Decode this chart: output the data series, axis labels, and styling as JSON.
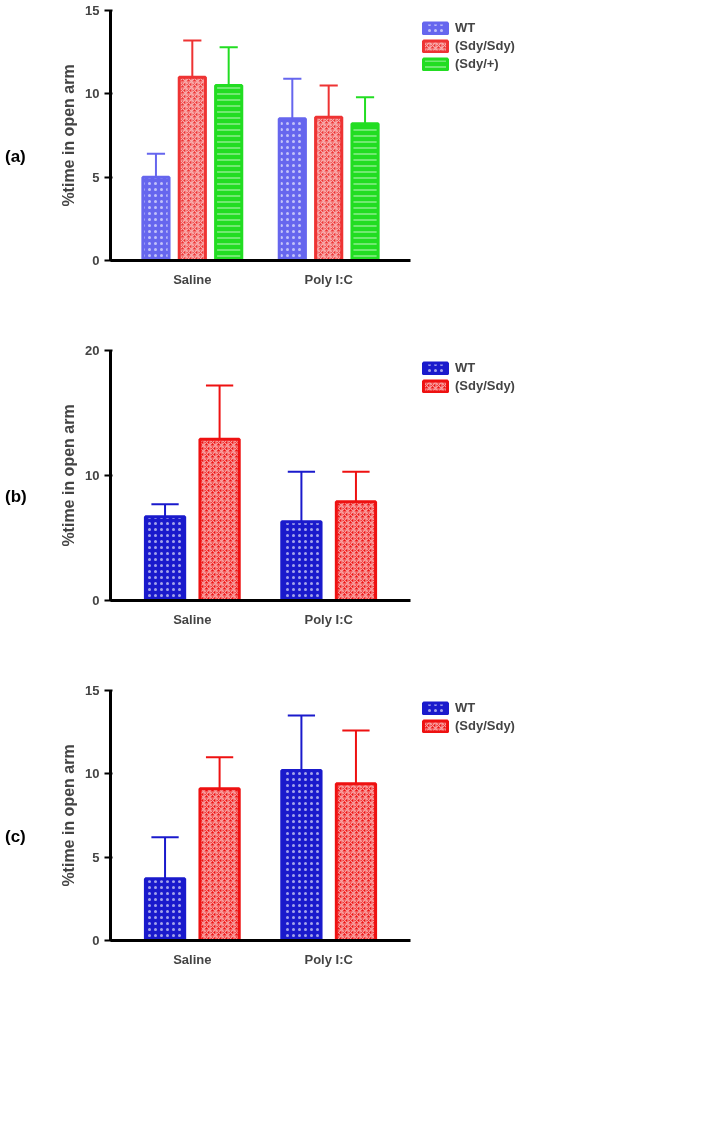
{
  "chart_data": [
    {
      "type": "bar",
      "title": "(a)",
      "ylabel": "%time in open arm",
      "categories": [
        "Saline",
        "Poly I:C"
      ],
      "ylim": [
        0,
        15
      ],
      "yticks": [
        0,
        5,
        10,
        15
      ],
      "legend": "top right",
      "series": [
        {
          "name": "WT",
          "color": "#6666ee",
          "values": [
            5.0,
            8.5
          ],
          "errors": [
            [
              5.0,
              6.4
            ],
            [
              8.5,
              10.9
            ]
          ]
        },
        {
          "name": "(Sdy/Sdy)",
          "color": "#ee3333",
          "values": [
            11.0,
            8.6
          ],
          "errors": [
            [
              11.0,
              13.2
            ],
            [
              8.6,
              10.5
            ]
          ]
        },
        {
          "name": "(Sdy/+)",
          "color": "#22dd22",
          "values": [
            10.5,
            8.2
          ],
          "errors": [
            [
              10.5,
              12.8
            ],
            [
              8.2,
              9.8
            ]
          ]
        }
      ]
    },
    {
      "type": "bar",
      "title": "(b)",
      "ylabel": "%time in open arm",
      "categories": [
        "Saline",
        "Poly I:C"
      ],
      "ylim": [
        0,
        20
      ],
      "yticks": [
        0,
        10,
        20
      ],
      "legend": "top right",
      "series": [
        {
          "name": "WT",
          "color": "#1a1acc",
          "values": [
            6.7,
            6.3
          ],
          "errors": [
            [
              6.7,
              7.7
            ],
            [
              6.3,
              10.3
            ]
          ]
        },
        {
          "name": "(Sdy/Sdy)",
          "color": "#ee1111",
          "values": [
            12.9,
            7.9
          ],
          "errors": [
            [
              12.9,
              17.2
            ],
            [
              7.9,
              10.3
            ]
          ]
        }
      ]
    },
    {
      "type": "bar",
      "title": "(c)",
      "ylabel": "%time in open arm",
      "categories": [
        "Saline",
        "Poly I:C"
      ],
      "ylim": [
        0,
        15
      ],
      "yticks": [
        0,
        5,
        10,
        15
      ],
      "legend": "top right",
      "series": [
        {
          "name": "WT",
          "color": "#1a1acc",
          "values": [
            3.7,
            10.2
          ],
          "errors": [
            [
              3.7,
              6.2
            ],
            [
              10.2,
              13.5
            ]
          ]
        },
        {
          "name": "(Sdy/Sdy)",
          "color": "#ee1111",
          "values": [
            9.1,
            9.4
          ],
          "errors": [
            [
              9.1,
              11.0
            ],
            [
              9.4,
              12.6
            ]
          ]
        }
      ]
    }
  ]
}
